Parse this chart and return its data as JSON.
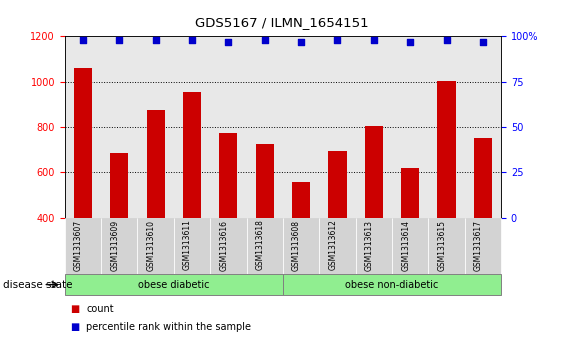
{
  "title": "GDS5167 / ILMN_1654151",
  "samples": [
    "GSM1313607",
    "GSM1313609",
    "GSM1313610",
    "GSM1313611",
    "GSM1313616",
    "GSM1313618",
    "GSM1313608",
    "GSM1313612",
    "GSM1313613",
    "GSM1313614",
    "GSM1313615",
    "GSM1313617"
  ],
  "counts": [
    1060,
    685,
    875,
    955,
    775,
    725,
    560,
    695,
    805,
    620,
    1005,
    750
  ],
  "percentiles": [
    98,
    98,
    98,
    98,
    97,
    98,
    97,
    98,
    98,
    97,
    98,
    97
  ],
  "bar_color": "#CC0000",
  "dot_color": "#0000CC",
  "ylim_left": [
    400,
    1200
  ],
  "ylim_right": [
    0,
    100
  ],
  "yticks_left": [
    400,
    600,
    800,
    1000,
    1200
  ],
  "yticks_right": [
    0,
    25,
    50,
    75,
    100
  ],
  "grid_values": [
    600,
    800,
    1000
  ],
  "disease_state_label": "disease state",
  "group1_label": "obese diabetic",
  "group2_label": "obese non-diabetic",
  "group_color": "#90EE90",
  "bg_color_axes": "#E8E8E8",
  "bg_color_fig": "#FFFFFF",
  "legend_count_label": "count",
  "legend_pct_label": "percentile rank within the sample"
}
